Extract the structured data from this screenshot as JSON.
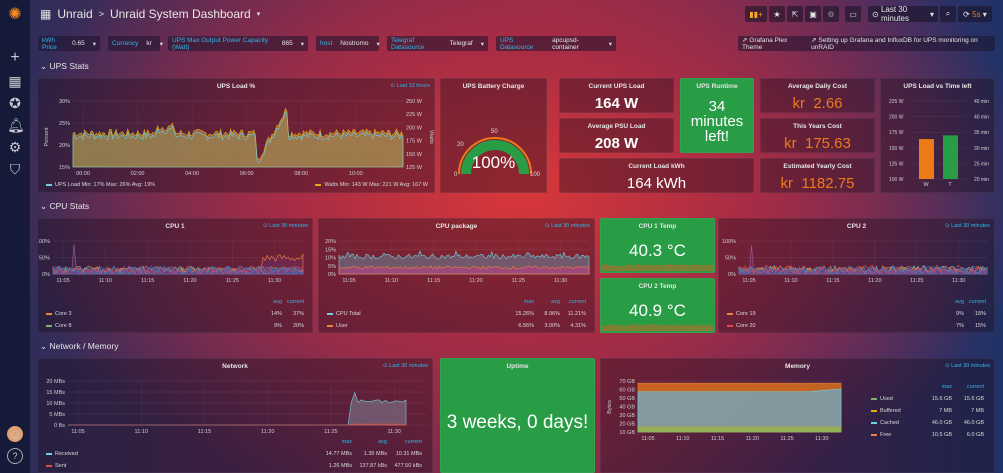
{
  "header": {
    "breadcrumb_root": "Unraid",
    "breadcrumb_sep": ">",
    "title": "Unraid System Dashboard",
    "time_range": "Last 30 minutes",
    "refresh": "5s"
  },
  "toolbar": {
    "add_panel": "add-panel-icon",
    "star": "star-icon",
    "share": "share-icon",
    "save": "save-icon",
    "settings": "gear-icon",
    "tv": "monitor-icon",
    "zoom": "search-icon",
    "refresh": "refresh-icon"
  },
  "variables": [
    {
      "label": "kWh Price",
      "value": "0.65"
    },
    {
      "label": "Currency",
      "value": "kr"
    },
    {
      "label": "UPS Max Output Power Capacity (Watt)",
      "value": "865"
    },
    {
      "label": "host",
      "value": "Nostromo"
    },
    {
      "label": "Telegraf Datasource",
      "value": "Telegraf"
    },
    {
      "label": "UPS Datasource",
      "value": "apcupsd-container"
    }
  ],
  "links": [
    "Grafana Plex Theme",
    "Setting up Grafana and InfluxDB for UPS monitoring on unRAID"
  ],
  "rows": [
    "UPS Stats",
    "CPU Stats",
    "Network / Memory"
  ],
  "colors": {
    "green": "#299c46",
    "orange": "#eb7b18",
    "blue": "#33b5e5",
    "yellow": "#e5ac0e"
  },
  "ups": {
    "load": {
      "title": "UPS Load %",
      "time": "Last 12 hours",
      "ylabel": "Percent",
      "y2label": "Watts",
      "yticks": [
        "30%",
        "25%",
        "20%",
        "15%"
      ],
      "y2ticks": [
        "250 W",
        "225 W",
        "200 W",
        "175 W",
        "150 W",
        "125 W"
      ],
      "xticks": [
        "00:00",
        "02:00",
        "04:00",
        "06:00",
        "08:00",
        "10:00"
      ],
      "legend_left": "UPS Load  Min: 17%  Max: 26%  Avg: 19%",
      "legend_right": "Watts  Min: 143 W  Max: 221 W  Avg: 167 W"
    },
    "battery": {
      "title": "UPS Battery Charge",
      "value": "100%",
      "percent": 100,
      "ticks": [
        "0",
        "20",
        "50",
        "100"
      ]
    },
    "current_load": {
      "title": "Current UPS Load",
      "value": "164 W"
    },
    "avg_psu": {
      "title": "Average PSU Load",
      "value": "208 W"
    },
    "runtime": {
      "title": "UPS Runtime",
      "line1": "34",
      "line2": "minutes",
      "line3": "left!"
    },
    "kwh": {
      "title": "Current Load kWh",
      "value": "164 kWh"
    },
    "daily": {
      "title": "Average Daily Cost",
      "value": "kr  2.66"
    },
    "yearly": {
      "title": "This Years Cost",
      "value": "kr  175.63"
    },
    "est": {
      "title": "Estimated Yearly Cost",
      "value": "kr  1182.75"
    },
    "vs": {
      "title": "UPS Load vs Time left",
      "yticks": [
        "225 W",
        "200 W",
        "175 W",
        "150 W",
        "125 W",
        "100 W"
      ],
      "y2ticks": [
        "45 min",
        "40 min",
        "35 min",
        "30 min",
        "25 min",
        "20 min"
      ],
      "categories": [
        "W",
        "T"
      ]
    }
  },
  "cpu": {
    "cpu1": {
      "title": "CPU 1",
      "time": "Last 30 minutes",
      "yticks": [
        "100%",
        "50%",
        "0%"
      ],
      "xticks": [
        "11:05",
        "11:10",
        "11:15",
        "11:20",
        "11:25",
        "11:30"
      ],
      "headers": [
        "avg",
        "current"
      ],
      "rows": [
        {
          "name": "Core 3",
          "avg": "14%",
          "current": "37%"
        },
        {
          "name": "Core 8",
          "avg": "9%",
          "current": "20%"
        }
      ]
    },
    "pkg": {
      "title": "CPU package",
      "time": "Last 30 minutes",
      "yticks": [
        "20%",
        "15%",
        "10%",
        "5%",
        "0%"
      ],
      "xticks": [
        "11:05",
        "11:10",
        "11:15",
        "11:20",
        "11:25",
        "11:30"
      ],
      "headers": [
        "max",
        "avg",
        "current"
      ],
      "rows": [
        {
          "name": "CPU Total",
          "max": "15.26%",
          "avg": "8.96%",
          "current": "11.21%"
        },
        {
          "name": "User",
          "max": "6.56%",
          "avg": "3.00%",
          "current": "4.31%"
        }
      ]
    },
    "temp1": {
      "title": "CPU 1 Temp",
      "value": "40.3 °C"
    },
    "temp2": {
      "title": "CPU 2 Temp",
      "value": "40.9 °C"
    },
    "cpu2": {
      "title": "CPU 2",
      "time": "Last 30 minutes",
      "yticks": [
        "100%",
        "50%",
        "0%"
      ],
      "xticks": [
        "11:05",
        "11:10",
        "11:15",
        "11:20",
        "11:25",
        "11:30"
      ],
      "headers": [
        "avg",
        "current"
      ],
      "rows": [
        {
          "name": "Core 19",
          "avg": "9%",
          "current": "18%"
        },
        {
          "name": "Core 20",
          "avg": "7%",
          "current": "15%"
        }
      ]
    }
  },
  "net": {
    "network": {
      "title": "Network",
      "time": "Last 30 minutes",
      "yticks": [
        "20 MBs",
        "15 MBs",
        "10 MBs",
        "5 MBs",
        "0 Bs"
      ],
      "xticks": [
        "11:05",
        "11:10",
        "11:15",
        "11:20",
        "11:25",
        "11:30"
      ],
      "headers": [
        "max",
        "avg",
        "current"
      ],
      "rows": [
        {
          "name": "Received",
          "max": "14.77 MBs",
          "avg": "1.35 MBs",
          "current": "10.31 MBs"
        },
        {
          "name": "Sent",
          "max": "1.26 MBs",
          "avg": "137.87 kBs",
          "current": "477.50 kBs"
        }
      ]
    },
    "uptime": {
      "title": "Uptime",
      "value": "3 weeks, 0 days!"
    },
    "memory": {
      "title": "Memory",
      "time": "Last 30 minutes",
      "ylabel": "Bytes",
      "yticks": [
        "70 GB",
        "60 GB",
        "50 GB",
        "40 GB",
        "30 GB",
        "20 GB",
        "10 GB"
      ],
      "xticks": [
        "11:05",
        "11:10",
        "11:15",
        "11:20",
        "11:25",
        "11:30"
      ],
      "headers": [
        "max",
        "current"
      ],
      "rows": [
        {
          "name": "Used",
          "max": "15.6 GB",
          "current": "15.6 GB"
        },
        {
          "name": "Buffered",
          "max": "7 MB",
          "current": "7 MB"
        },
        {
          "name": "Cached",
          "max": "46.0 GB",
          "current": "46.0 GB"
        },
        {
          "name": "Free",
          "max": "10.5 GB",
          "current": "6.0 GB"
        }
      ]
    }
  },
  "chart_data": [
    {
      "type": "bar",
      "title": "UPS Load vs Time left",
      "categories": [
        "W",
        "T"
      ],
      "values": [
        164,
        34
      ],
      "units": [
        "W",
        "min"
      ],
      "ylim": [
        100,
        225
      ],
      "y2lim": [
        20,
        45
      ]
    },
    {
      "type": "area",
      "title": "Network",
      "x": [
        "11:05",
        "11:10",
        "11:15",
        "11:20",
        "11:25",
        "11:30",
        "11:34"
      ],
      "series": [
        {
          "name": "Received",
          "values": [
            0,
            0,
            0,
            0,
            0,
            10.5,
            10.3
          ]
        },
        {
          "name": "Sent",
          "values": [
            0,
            0,
            0,
            0,
            0,
            0.4,
            0.5
          ]
        }
      ],
      "ylim": [
        0,
        20
      ]
    },
    {
      "type": "area",
      "title": "Memory",
      "x": [
        "11:05",
        "11:10",
        "11:15",
        "11:20",
        "11:25",
        "11:30",
        "11:34"
      ],
      "series": [
        {
          "name": "Used",
          "values": [
            15.6,
            15.6,
            15.6,
            15.6,
            15.6,
            15.6,
            15.6
          ]
        },
        {
          "name": "Cached",
          "values": [
            41,
            42,
            42,
            42,
            42,
            42,
            46
          ]
        },
        {
          "name": "Free",
          "values": [
            10.5,
            10,
            10,
            10,
            10,
            10,
            6
          ]
        }
      ],
      "ylim": [
        10,
        70
      ]
    }
  ]
}
